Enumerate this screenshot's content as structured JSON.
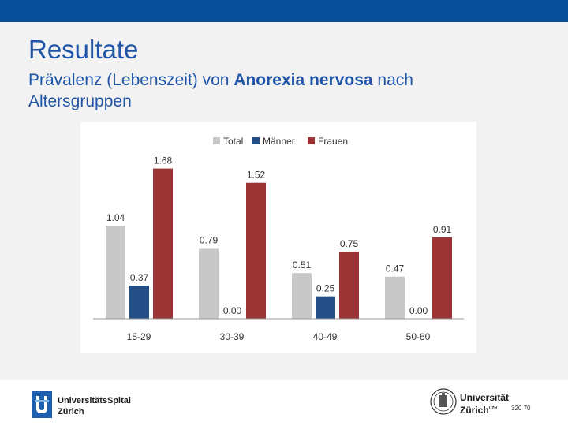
{
  "slide": {
    "title": "Resultate",
    "subtitle_pre": "Prävalenz (Lebenszeit) von ",
    "subtitle_bold": "Anorexia nervosa",
    "subtitle_post": " nach Altersgruppen",
    "page_number": "320   70"
  },
  "footer": {
    "usz_line1": "UniversitätsSpital",
    "usz_line2": "Zürich",
    "uzh_line1": "Universität",
    "uzh_line2": "Zürich",
    "uzh_suffix": "UZH"
  },
  "colors": {
    "header": "#0a4f9a",
    "title": "#1f54a6",
    "total": "#c8c8c8",
    "maenner": "#234f86",
    "frauen": "#9b3535"
  },
  "chart_data": {
    "type": "bar",
    "categories": [
      "15-29",
      "30-39",
      "40-49",
      "50-60"
    ],
    "series": [
      {
        "name": "Total",
        "values": [
          1.04,
          0.79,
          0.51,
          0.47
        ],
        "labels": [
          "1.04",
          "0.79",
          "0.51",
          "0.47"
        ],
        "color": "#c8c8c8"
      },
      {
        "name": "Männer",
        "values": [
          0.37,
          0.0,
          0.25,
          0.0
        ],
        "labels": [
          "0.37",
          "0.00",
          "0.25",
          "0.00"
        ],
        "color": "#234f86"
      },
      {
        "name": "Frauen",
        "values": [
          1.68,
          1.52,
          0.75,
          0.91
        ],
        "labels": [
          "1.68",
          "1.52",
          "0.75",
          "0.91"
        ],
        "color": "#9b3535"
      }
    ],
    "ylim": [
      0,
      1.8
    ],
    "legend": "top-center",
    "grid": false
  }
}
